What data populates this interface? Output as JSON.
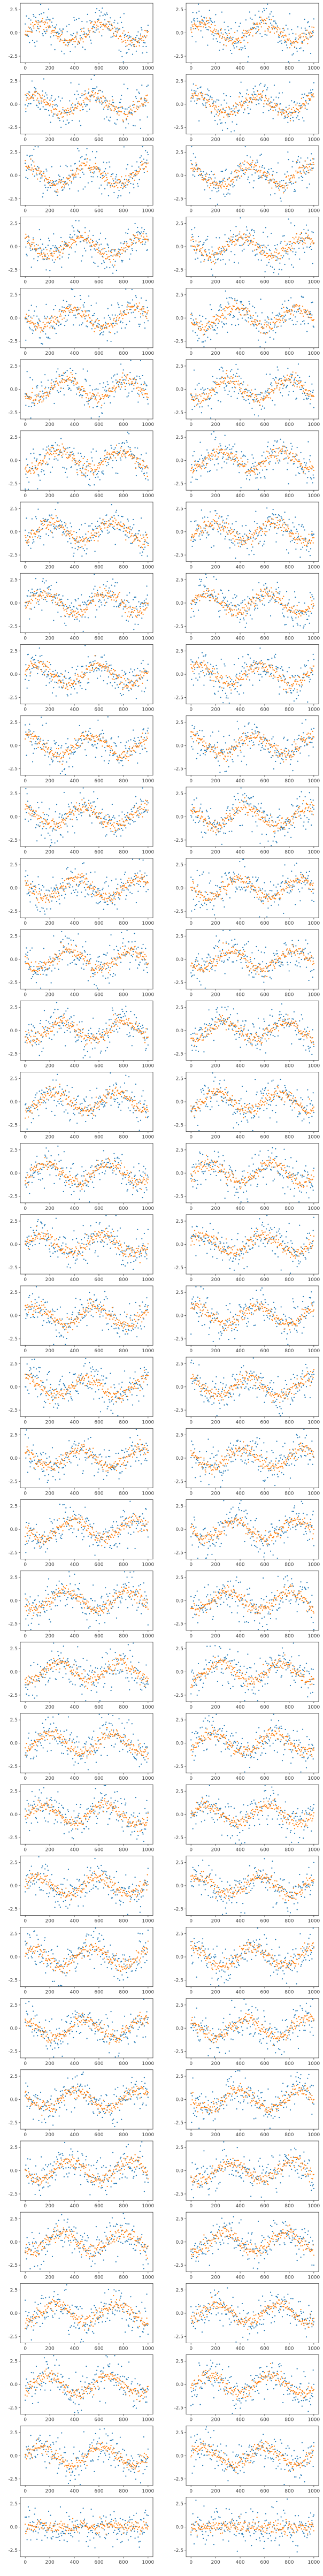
{
  "chart_data": {
    "type": "scatter",
    "layout": {
      "rows": 36,
      "cols": 2
    },
    "xlim": [
      -40,
      1040
    ],
    "xticks": [
      0,
      200,
      400,
      600,
      800,
      1000
    ],
    "ylim": [
      -3.2,
      3.2
    ],
    "yticks": [
      -2.5,
      0.0,
      2.5
    ],
    "colors": {
      "raw": "#1f77b4",
      "smoothed": "#ff7f0e"
    },
    "series": [
      {
        "role": "raw",
        "marker": "dot",
        "points": 200,
        "amplitude": 1.0,
        "period": 500,
        "noise_sd": 1.0
      },
      {
        "role": "smoothed",
        "marker": "dot",
        "points": 200,
        "amplitude": 1.0,
        "period": 500,
        "noise_sd": 0.35
      }
    ],
    "last_row": {
      "amplitude": 0.0,
      "period": 500,
      "ylim": [
        -3.2,
        3.2
      ]
    }
  }
}
